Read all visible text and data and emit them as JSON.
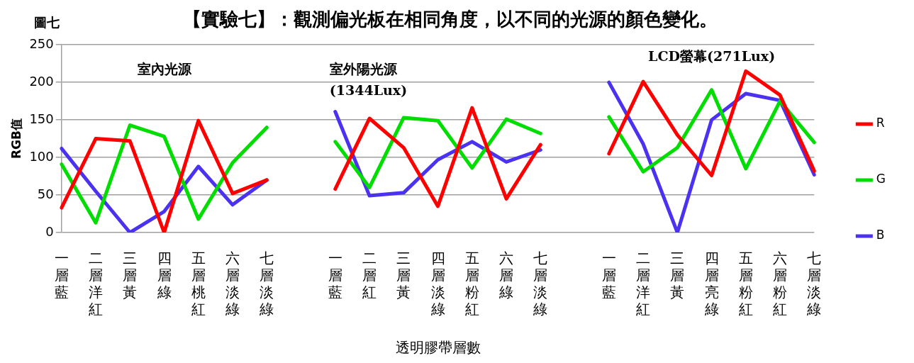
{
  "chart_data": {
    "type": "line",
    "title": "【實驗七】：觀測偏光板在相同角度，以不同的光源的顏色變化。",
    "xlabel": "透明膠帶層數",
    "ylabel": "RGB值",
    "annotations": [
      "圖七",
      "室內光源",
      "室外陽光源\n(1344Lux)",
      "LCD螢幕(271Lux)"
    ],
    "categories": [
      "一層藍",
      "二層洋紅",
      "三層黃",
      "四層綠",
      "五層桃紅",
      "六層淡綠",
      "七層淡綠",
      null,
      "一層藍",
      "二層紅",
      "三層黃",
      "四層淡綠",
      "五層粉紅",
      "六層綠",
      "七層淡綠",
      null,
      "一層藍",
      "二層洋紅",
      "三層黃",
      "四層亮綠",
      "五層粉紅",
      "六層粉紅",
      "七層淡綠"
    ],
    "series": [
      {
        "name": "R",
        "color": "#ff0000",
        "values": [
          33,
          125,
          122,
          0,
          149,
          52,
          70,
          null,
          58,
          152,
          113,
          35,
          166,
          45,
          117,
          null,
          105,
          201,
          130,
          76,
          215,
          183,
          82
        ]
      },
      {
        "name": "G",
        "color": "#00dd00",
        "values": [
          91,
          13,
          143,
          128,
          18,
          93,
          140,
          null,
          121,
          60,
          153,
          149,
          86,
          151,
          132,
          null,
          154,
          81,
          113,
          190,
          85,
          175,
          120
        ]
      },
      {
        "name": "B",
        "color": "#4b32f0",
        "values": [
          112,
          55,
          0,
          28,
          88,
          37,
          70,
          null,
          161,
          49,
          53,
          97,
          121,
          94,
          110,
          null,
          200,
          118,
          0,
          150,
          185,
          176,
          77
        ]
      }
    ],
    "ylim": [
      0,
      250
    ],
    "yticks": [
      0,
      50,
      100,
      150,
      200,
      250
    ],
    "grid": "y",
    "legend": "right",
    "marker": "none",
    "line_style": "solid"
  }
}
